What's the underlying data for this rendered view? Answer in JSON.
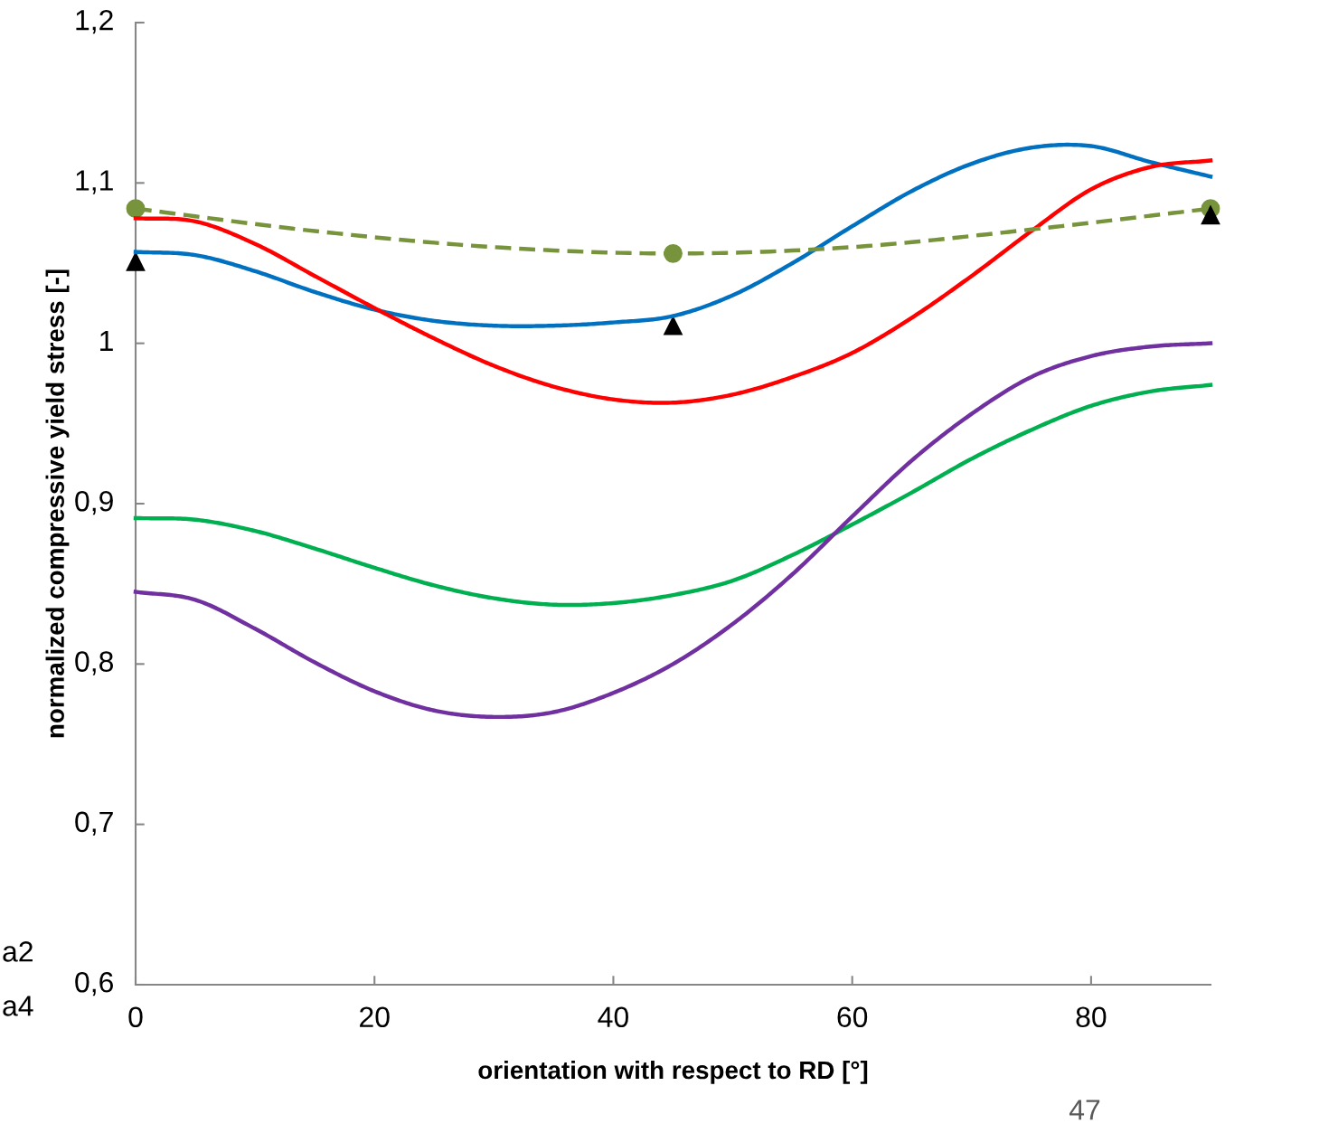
{
  "chart_data": {
    "type": "line",
    "xlabel": "orientation with respect to RD [°]",
    "ylabel": "normalized compressive yield stress [-]",
    "xlim": [
      0,
      90
    ],
    "xticks": [
      0,
      20,
      40,
      60,
      80
    ],
    "ylim": [
      0.6,
      1.2
    ],
    "yticks": [
      {
        "value": 0.6,
        "label": "0,6"
      },
      {
        "value": 0.7,
        "label": "0,7"
      },
      {
        "value": 0.8,
        "label": "0,8"
      },
      {
        "value": 0.9,
        "label": "0,9"
      },
      1,
      {
        "value": 1.1,
        "label": "1,1"
      },
      {
        "value": 1.2,
        "label": "1,2"
      }
    ],
    "grid": false,
    "legend": false,
    "series": [
      {
        "color": "#0070c0",
        "x": [
          0,
          5,
          10,
          15,
          20,
          25,
          30,
          35,
          40,
          45,
          50,
          55,
          60,
          65,
          70,
          75,
          80,
          85,
          90
        ],
        "values": [
          1.057,
          1.055,
          1.045,
          1.032,
          1.021,
          1.014,
          1.011,
          1.011,
          1.013,
          1.017,
          1.03,
          1.05,
          1.073,
          1.095,
          1.112,
          1.122,
          1.123,
          1.113,
          1.104
        ]
      },
      {
        "color": "#ff0000",
        "x": [
          0,
          5,
          10,
          15,
          20,
          25,
          30,
          35,
          40,
          45,
          50,
          55,
          60,
          65,
          70,
          75,
          80,
          85,
          90
        ],
        "values": [
          1.078,
          1.076,
          1.062,
          1.042,
          1.022,
          1.003,
          0.986,
          0.973,
          0.965,
          0.963,
          0.968,
          0.979,
          0.994,
          1.016,
          1.042,
          1.07,
          1.096,
          1.11,
          1.114
        ]
      },
      {
        "color": "#00b050",
        "x": [
          0,
          5,
          10,
          15,
          20,
          25,
          30,
          35,
          40,
          45,
          50,
          55,
          60,
          65,
          70,
          75,
          80,
          85,
          90
        ],
        "values": [
          0.891,
          0.89,
          0.883,
          0.872,
          0.86,
          0.849,
          0.841,
          0.837,
          0.838,
          0.843,
          0.852,
          0.868,
          0.887,
          0.907,
          0.928,
          0.946,
          0.961,
          0.97,
          0.974
        ]
      },
      {
        "color": "#7030a0",
        "x": [
          0,
          5,
          10,
          15,
          20,
          25,
          30,
          35,
          40,
          45,
          50,
          55,
          60,
          65,
          70,
          75,
          80,
          85,
          90
        ],
        "values": [
          0.845,
          0.84,
          0.822,
          0.801,
          0.783,
          0.771,
          0.767,
          0.77,
          0.782,
          0.8,
          0.825,
          0.856,
          0.892,
          0.927,
          0.956,
          0.979,
          0.992,
          0.998,
          1.0
        ]
      },
      {
        "color": "#77933c",
        "line_style": "dashed",
        "x": [
          0,
          15,
          30,
          45,
          60,
          75,
          90
        ],
        "values": [
          1.084,
          1.07,
          1.06,
          1.056,
          1.06,
          1.071,
          1.084
        ]
      },
      {
        "type": "scatter",
        "color": "#77933c",
        "marker": "circle",
        "x": [
          0,
          45,
          90
        ],
        "values": [
          1.084,
          1.056,
          1.084
        ]
      },
      {
        "type": "scatter",
        "color": "#000000",
        "marker": "triangle",
        "x": [
          0,
          45,
          90
        ],
        "values": [
          1.051,
          1.011,
          1.08
        ]
      }
    ],
    "annotations": [
      "a2",
      "a4",
      "47"
    ]
  }
}
